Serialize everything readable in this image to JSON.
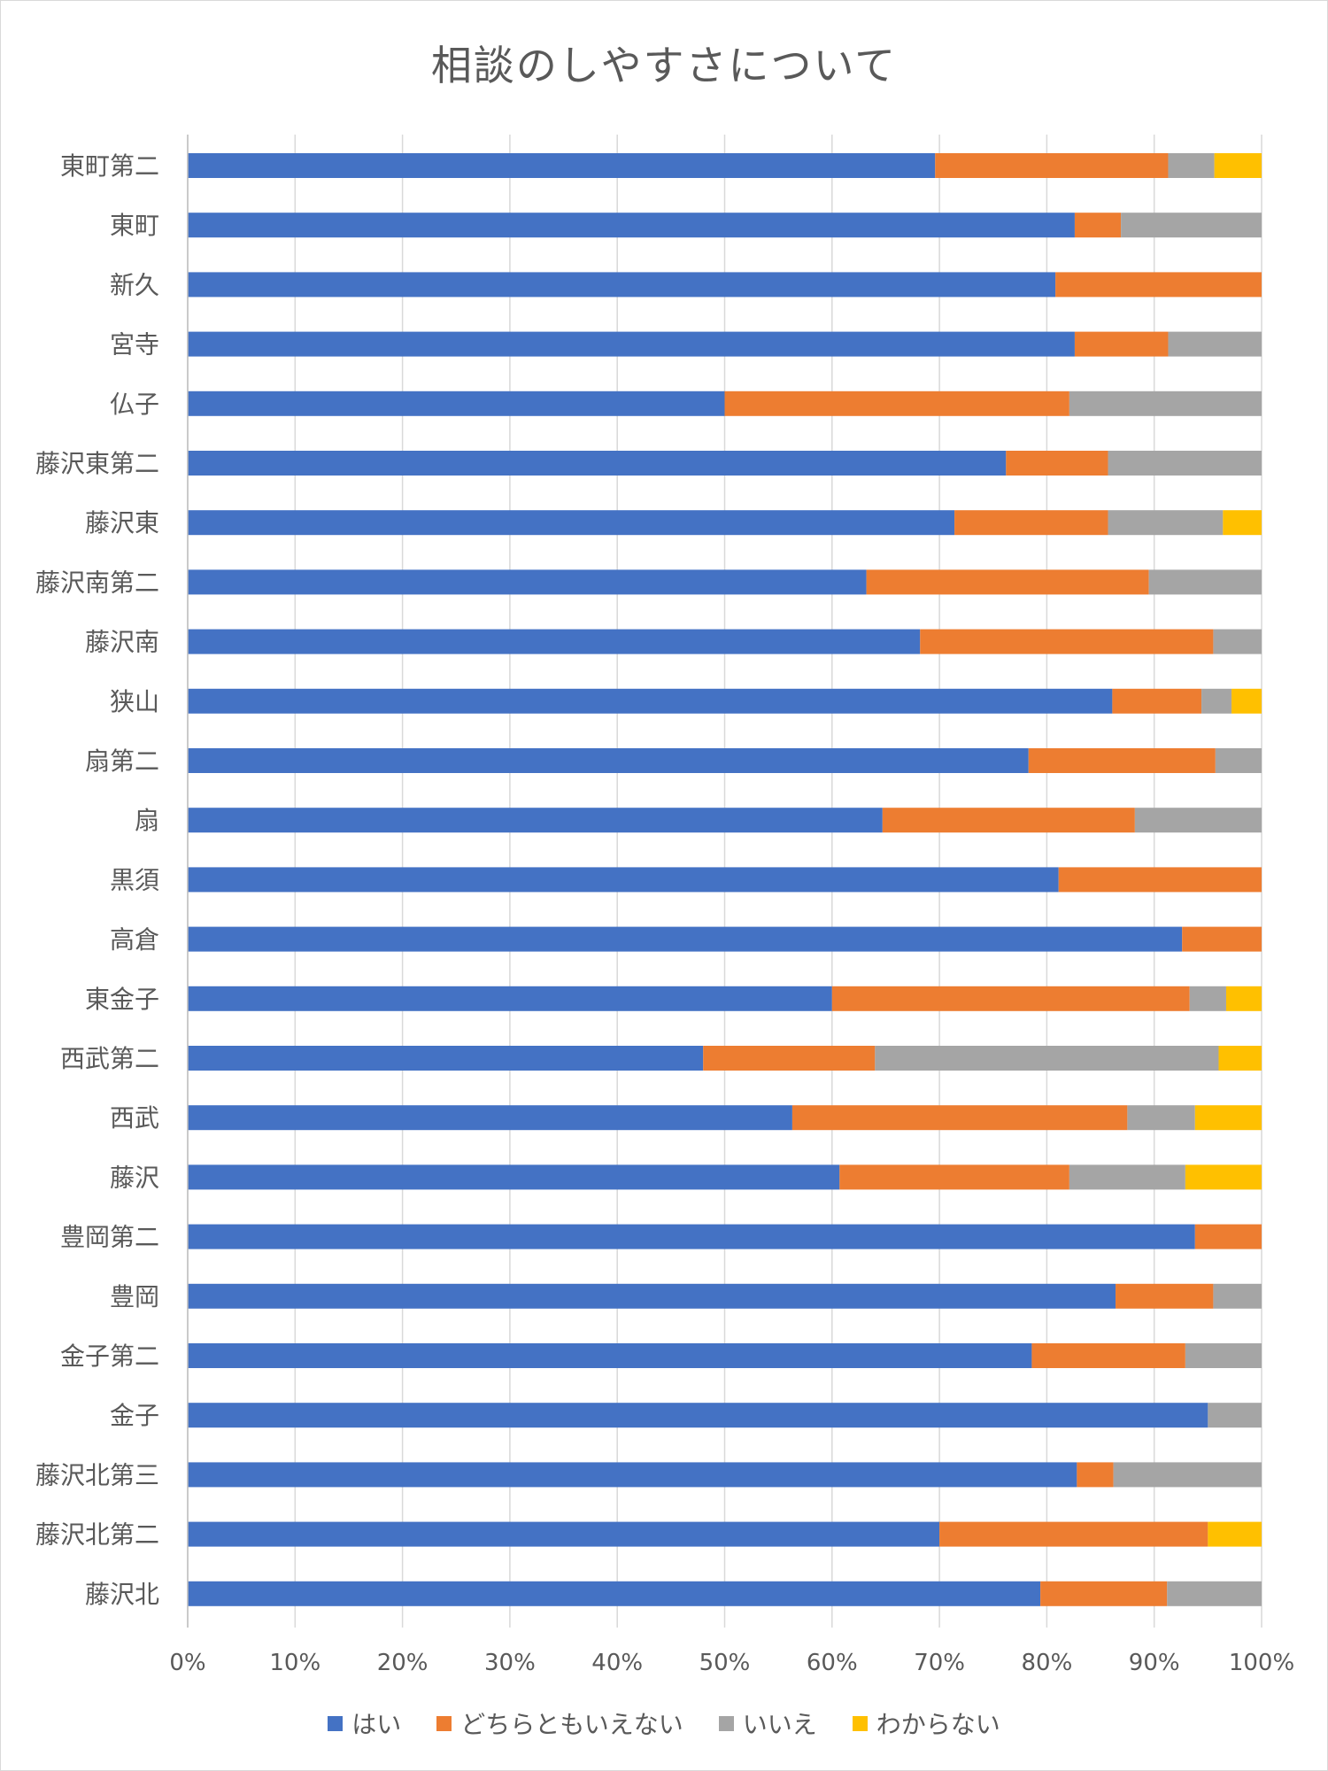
{
  "chart_data": {
    "type": "bar",
    "orientation": "horizontal",
    "stacked": "percent",
    "title": "相談のしやすさについて",
    "categories": [
      "東町第二",
      "東町",
      "新久",
      "宮寺",
      "仏子",
      "藤沢東第二",
      "藤沢東",
      "藤沢南第二",
      "藤沢南",
      "狭山",
      "扇第二",
      "扇",
      "黒須",
      "高倉",
      "東金子",
      "西武第二",
      "西武",
      "藤沢",
      "豊岡第二",
      "豊岡",
      "金子第二",
      "金子",
      "藤沢北第三",
      "藤沢北第二",
      "藤沢北"
    ],
    "series": [
      {
        "name": "はい",
        "color": "#4472C4",
        "values": [
          69.6,
          82.6,
          80.8,
          82.6,
          50.0,
          76.2,
          71.4,
          63.2,
          68.2,
          86.1,
          78.3,
          64.7,
          81.1,
          92.6,
          60.0,
          48.0,
          56.3,
          60.7,
          93.8,
          86.4,
          78.6,
          95.0,
          82.8,
          70.0,
          79.4
        ]
      },
      {
        "name": "どちらともいえない",
        "color": "#ED7D31",
        "values": [
          21.7,
          4.3,
          19.2,
          8.7,
          32.1,
          9.5,
          14.3,
          26.3,
          27.3,
          8.3,
          17.4,
          23.5,
          18.9,
          7.4,
          33.3,
          16.0,
          31.2,
          21.4,
          6.2,
          9.1,
          14.3,
          0.0,
          3.4,
          25.0,
          11.8
        ]
      },
      {
        "name": "いいえ",
        "color": "#A5A5A5",
        "values": [
          4.3,
          13.1,
          0.0,
          8.7,
          17.9,
          14.3,
          10.7,
          10.5,
          4.5,
          2.8,
          4.3,
          11.8,
          0.0,
          0.0,
          3.4,
          32.0,
          6.3,
          10.8,
          0.0,
          4.5,
          7.1,
          5.0,
          13.8,
          0.0,
          8.8
        ]
      },
      {
        "name": "わからない",
        "color": "#FFC000",
        "values": [
          4.4,
          0.0,
          0.0,
          0.0,
          0.0,
          0.0,
          3.6,
          0.0,
          0.0,
          2.8,
          0.0,
          0.0,
          0.0,
          0.0,
          3.3,
          4.0,
          6.2,
          7.1,
          0.0,
          0.0,
          0.0,
          0.0,
          0.0,
          5.0,
          0.0
        ]
      }
    ],
    "xlim": [
      0,
      100
    ],
    "xticks": [
      "0%",
      "10%",
      "20%",
      "30%",
      "40%",
      "50%",
      "60%",
      "70%",
      "80%",
      "90%",
      "100%"
    ],
    "grid": true,
    "legend_position": "bottom"
  }
}
